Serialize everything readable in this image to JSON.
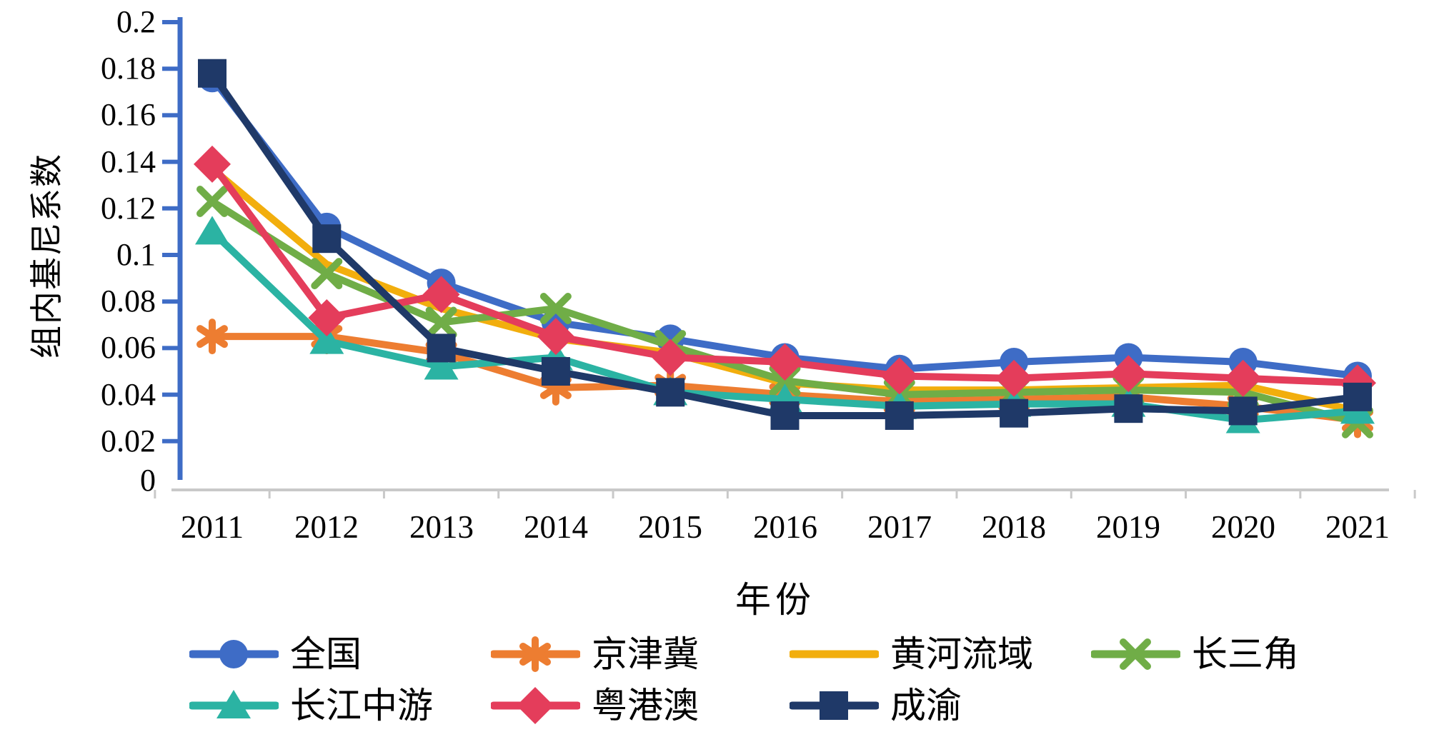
{
  "chart_data": {
    "type": "line",
    "title": "",
    "xlabel": "年份",
    "ylabel": "组内基尼系数",
    "x": [
      2011,
      2012,
      2013,
      2014,
      2015,
      2016,
      2017,
      2018,
      2019,
      2020,
      2021
    ],
    "x_tick_labels": [
      "2011",
      "2012",
      "2013",
      "2014",
      "2015",
      "2016",
      "2017",
      "2018",
      "2019",
      "2020",
      "2021"
    ],
    "y_tick_labels": [
      "0.2",
      "0.18",
      "0.16",
      "0.14",
      "0.12",
      "0.1",
      "0.08",
      "0.06",
      "0.04",
      "0.02",
      "0"
    ],
    "ylim": [
      0,
      0.2
    ],
    "y_tick_step": 0.02,
    "grid": false,
    "legend_position": "bottom",
    "axis_colors": {
      "y_axis": "#3E6CC6",
      "x_axis": "#C9C9C9"
    },
    "series": [
      {
        "name": "全国",
        "color": "#3E6CC6",
        "marker": "circle",
        "values": [
          0.176,
          0.112,
          0.088,
          0.071,
          0.064,
          0.056,
          0.051,
          0.054,
          0.056,
          0.054,
          0.048
        ]
      },
      {
        "name": "京津冀",
        "color": "#ED7D31",
        "marker": "asterisk",
        "values": [
          0.065,
          0.065,
          0.058,
          0.043,
          0.044,
          0.04,
          0.037,
          0.038,
          0.039,
          0.035,
          0.029
        ]
      },
      {
        "name": "黄河流域",
        "color": "#F2AE0D",
        "marker": "none",
        "values": [
          0.137,
          0.096,
          0.077,
          0.064,
          0.058,
          0.045,
          0.042,
          0.042,
          0.043,
          0.044,
          0.033
        ]
      },
      {
        "name": "长三角",
        "color": "#70AD47",
        "marker": "x",
        "values": [
          0.123,
          0.092,
          0.071,
          0.077,
          0.061,
          0.046,
          0.04,
          0.041,
          0.042,
          0.041,
          0.028
        ]
      },
      {
        "name": "长江中游",
        "color": "#2BB3A3",
        "marker": "triangle",
        "values": [
          0.11,
          0.063,
          0.052,
          0.056,
          0.041,
          0.038,
          0.035,
          0.036,
          0.036,
          0.029,
          0.033
        ]
      },
      {
        "name": "粤港澳",
        "color": "#E43D5B",
        "marker": "diamond",
        "values": [
          0.139,
          0.073,
          0.083,
          0.065,
          0.056,
          0.054,
          0.048,
          0.047,
          0.049,
          0.047,
          0.045
        ]
      },
      {
        "name": "成渝",
        "color": "#1F3968",
        "marker": "square",
        "values": [
          0.178,
          0.107,
          0.06,
          0.05,
          0.041,
          0.031,
          0.031,
          0.032,
          0.034,
          0.033,
          0.039
        ]
      }
    ]
  }
}
